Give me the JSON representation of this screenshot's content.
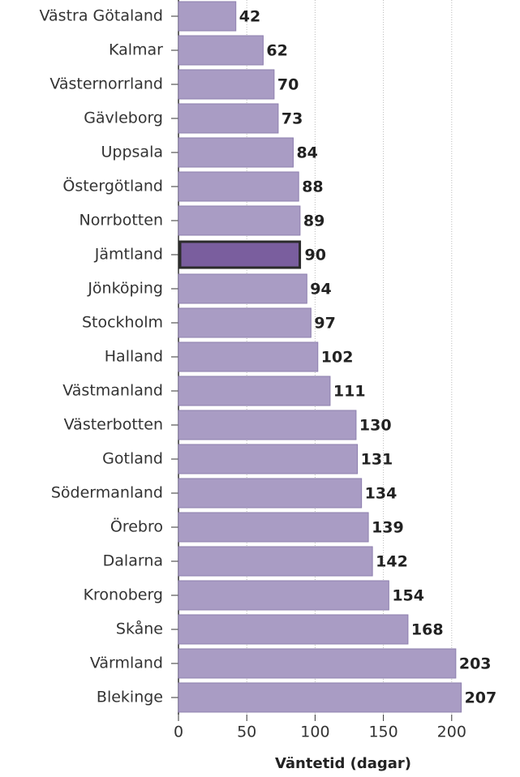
{
  "chart_data": {
    "type": "barh",
    "categories": [
      "Västra Götaland",
      "Kalmar",
      "Västernorrland",
      "Gävleborg",
      "Uppsala",
      "Östergötland",
      "Norrbotten",
      "Jämtland",
      "Jönköping",
      "Stockholm",
      "Halland",
      "Västmanland",
      "Västerbotten",
      "Gotland",
      "Södermanland",
      "Örebro",
      "Dalarna",
      "Kronoberg",
      "Skåne",
      "Värmland",
      "Blekinge"
    ],
    "values": [
      42,
      62,
      70,
      73,
      84,
      88,
      89,
      90,
      94,
      97,
      102,
      111,
      130,
      131,
      134,
      139,
      142,
      154,
      168,
      203,
      207
    ],
    "color": "#a99cc4",
    "highlight_color": "#7a5e9e",
    "highlight_index": 7,
    "xlabel": "Väntetid (dagar)",
    "xlim": [
      0,
      250
    ],
    "xticks": [
      0,
      50,
      100,
      150,
      200
    ],
    "grid": true
  }
}
